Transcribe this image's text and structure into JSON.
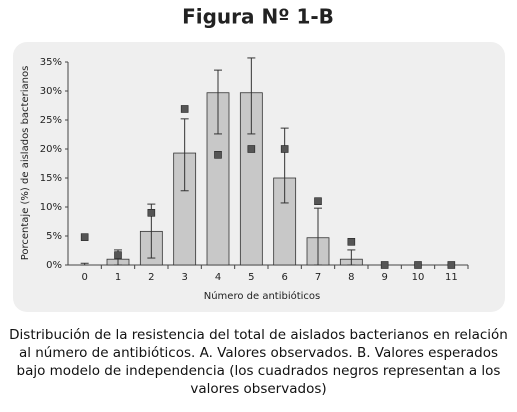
{
  "chart_data": {
    "type": "bar",
    "title": "Figura Nº 1-B",
    "y_label": "Porcentaje (%) de aislados bacterianos",
    "x_label": "Número de antibióticos",
    "caption": "Distribución de la resistencia del total de aislados bacterianos en relación al número de antibióticos. A. Valores observados. B. Valores esperados bajo modelo de independencia (los cuadrados negros representan a los valores observados)",
    "categories": [
      "0",
      "1",
      "2",
      "3",
      "4",
      "5",
      "6",
      "7",
      "8",
      "9",
      "10",
      "11"
    ],
    "values": [
      0,
      1,
      5.8,
      19.3,
      29.7,
      29.7,
      15,
      4.7,
      1,
      0,
      0,
      0
    ],
    "lower": [
      0,
      0,
      1.2,
      12.8,
      22.6,
      22.6,
      10.7,
      0,
      0,
      null,
      null,
      null
    ],
    "upper": [
      0.3,
      2.6,
      10.5,
      25.2,
      33.6,
      35.7,
      23.6,
      9.8,
      2.6,
      null,
      null,
      null
    ],
    "observed": [
      4.8,
      1.7,
      9,
      26.9,
      19,
      20,
      20,
      11,
      4,
      0,
      0,
      0
    ],
    "color": "#c8c8c8",
    "marker_color": "#555555",
    "ylim": [
      0,
      35
    ],
    "yticks": [
      {
        "value": 0,
        "label": "0%"
      },
      {
        "value": 5,
        "label": "5%"
      },
      {
        "value": 10,
        "label": "10%"
      },
      {
        "value": 15,
        "label": "15%"
      },
      {
        "value": 20,
        "label": "20%"
      },
      {
        "value": 25,
        "label": "25%"
      },
      {
        "value": 30,
        "label": "30%"
      },
      {
        "value": 35,
        "label": "35%"
      }
    ]
  }
}
